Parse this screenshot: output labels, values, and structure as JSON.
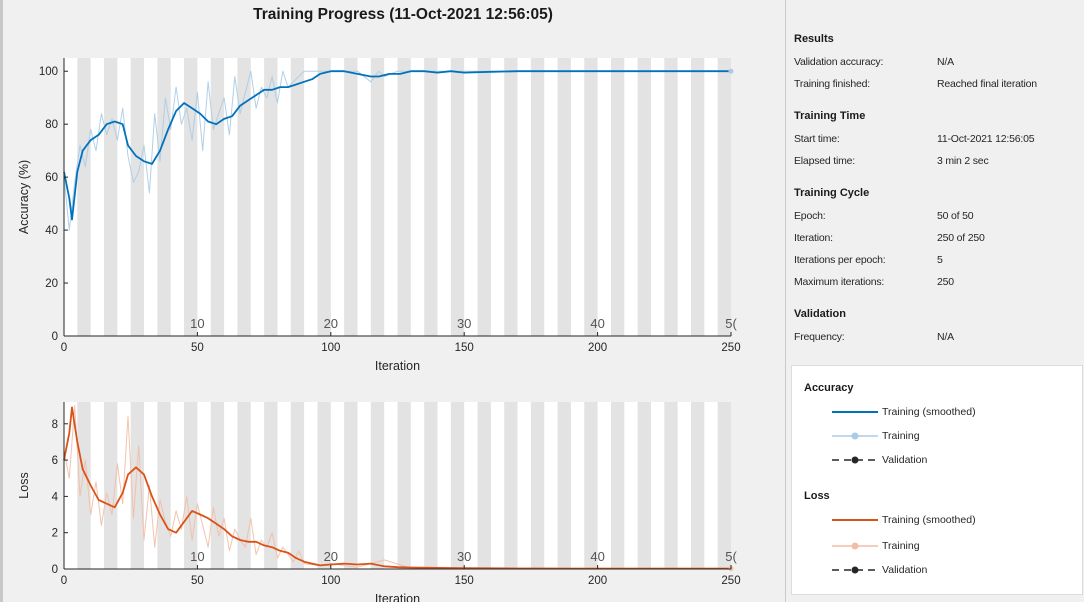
{
  "title": "Training Progress (11-Oct-2021 12:56:05)",
  "chart_data": [
    {
      "type": "line",
      "name": "accuracy-plot",
      "xlabel": "Iteration",
      "ylabel": "Accuracy (%)",
      "xlim": [
        0,
        250
      ],
      "ylim": [
        0,
        105
      ],
      "xticks": [
        0,
        50,
        100,
        150,
        200,
        250
      ],
      "yticks": [
        0,
        20,
        40,
        60,
        80,
        100
      ],
      "epoch_labels": [
        {
          "x": 50,
          "label": "10"
        },
        {
          "x": 100,
          "label": "20"
        },
        {
          "x": 150,
          "label": "30"
        },
        {
          "x": 200,
          "label": "40"
        },
        {
          "x": 250,
          "label": "5("
        }
      ],
      "epoch_bands": 50,
      "iterations_per_epoch": 5,
      "series": [
        {
          "name": "Training (smoothed)",
          "color": "#0072BD",
          "x": [
            0,
            2,
            3,
            5,
            7,
            10,
            13,
            16,
            19,
            22,
            24,
            27,
            30,
            33,
            36,
            39,
            42,
            45,
            48,
            51,
            54,
            57,
            60,
            63,
            66,
            69,
            72,
            75,
            78,
            81,
            84,
            87,
            90,
            93,
            96,
            100,
            105,
            110,
            115,
            118,
            122,
            126,
            130,
            135,
            140,
            145,
            150,
            160,
            170,
            180,
            190,
            200,
            210,
            220,
            230,
            240,
            250
          ],
          "y": [
            62,
            52,
            44,
            62,
            70,
            74,
            76,
            80,
            81,
            80,
            72,
            68,
            66,
            65,
            70,
            78,
            85,
            88,
            86,
            84,
            81,
            80,
            82,
            83,
            87,
            89,
            91,
            93,
            93,
            94,
            94,
            95,
            96,
            97,
            99,
            100,
            100,
            99,
            98,
            98,
            99,
            99,
            100,
            100,
            99.5,
            100,
            99.5,
            99.8,
            100,
            100,
            100,
            100,
            100,
            100,
            100,
            100,
            100
          ]
        },
        {
          "name": "Training",
          "color": "#A9CBE6",
          "x": [
            0,
            2,
            4,
            6,
            8,
            10,
            12,
            14,
            16,
            18,
            20,
            22,
            24,
            26,
            28,
            30,
            32,
            34,
            36,
            38,
            40,
            42,
            44,
            46,
            48,
            50,
            52,
            54,
            56,
            58,
            60,
            62,
            64,
            66,
            68,
            70,
            72,
            74,
            76,
            78,
            80,
            82,
            84,
            86,
            88,
            90,
            95,
            100,
            105,
            110,
            115,
            118,
            120,
            125,
            130,
            140,
            150,
            160,
            170,
            180,
            190,
            200,
            210,
            220,
            230,
            240,
            250
          ],
          "y": [
            60,
            40,
            58,
            72,
            64,
            78,
            70,
            84,
            76,
            82,
            74,
            86,
            68,
            58,
            62,
            72,
            54,
            84,
            66,
            90,
            78,
            94,
            80,
            86,
            74,
            92,
            70,
            96,
            78,
            84,
            90,
            76,
            98,
            84,
            92,
            100,
            86,
            94,
            90,
            98,
            88,
            100,
            94,
            96,
            98,
            100,
            100,
            100,
            100,
            100,
            96,
            100,
            98,
            100,
            100,
            100,
            100,
            100,
            100,
            100,
            100,
            100,
            100,
            100,
            100,
            100,
            100
          ]
        }
      ]
    },
    {
      "type": "line",
      "name": "loss-plot",
      "xlabel": "Iteration",
      "ylabel": "Loss",
      "xlim": [
        0,
        250
      ],
      "ylim": [
        0,
        9.2
      ],
      "xticks": [
        0,
        50,
        100,
        150,
        200,
        250
      ],
      "yticks": [
        0,
        2,
        4,
        6,
        8
      ],
      "epoch_labels": [
        {
          "x": 50,
          "label": "10"
        },
        {
          "x": 100,
          "label": "20"
        },
        {
          "x": 150,
          "label": "30"
        },
        {
          "x": 200,
          "label": "40"
        },
        {
          "x": 250,
          "label": "5("
        }
      ],
      "epoch_bands": 50,
      "series": [
        {
          "name": "Training (smoothed)",
          "color": "#D95319",
          "x": [
            0,
            2,
            3,
            5,
            7,
            10,
            13,
            16,
            19,
            22,
            24,
            27,
            30,
            33,
            36,
            39,
            42,
            45,
            48,
            51,
            54,
            57,
            60,
            63,
            66,
            69,
            72,
            75,
            78,
            81,
            84,
            87,
            90,
            93,
            96,
            100,
            105,
            110,
            115,
            120,
            125,
            130,
            140,
            150,
            160,
            170,
            180,
            190,
            200,
            210,
            220,
            230,
            240,
            250
          ],
          "y": [
            6,
            7.5,
            8.9,
            7,
            5.5,
            4.6,
            3.8,
            3.6,
            3.4,
            4.2,
            5.2,
            5.6,
            5.2,
            4.0,
            3.0,
            2.2,
            2.0,
            2.6,
            3.2,
            3.0,
            2.8,
            2.5,
            2.2,
            1.8,
            1.6,
            1.5,
            1.5,
            1.3,
            1.2,
            1.0,
            0.9,
            0.6,
            0.4,
            0.3,
            0.2,
            0.25,
            0.3,
            0.25,
            0.3,
            0.15,
            0.1,
            0.08,
            0.06,
            0.05,
            0.04,
            0.03,
            0.03,
            0.02,
            0.02,
            0.02,
            0.02,
            0.02,
            0.02,
            0.02
          ]
        },
        {
          "name": "Training",
          "color": "#F2BDA4",
          "x": [
            0,
            2,
            4,
            6,
            8,
            10,
            12,
            14,
            16,
            18,
            20,
            22,
            24,
            26,
            28,
            30,
            32,
            34,
            36,
            38,
            40,
            42,
            44,
            46,
            48,
            50,
            52,
            54,
            56,
            58,
            60,
            62,
            64,
            66,
            68,
            70,
            72,
            74,
            76,
            78,
            80,
            82,
            84,
            86,
            88,
            90,
            95,
            100,
            110,
            120,
            130,
            140,
            150,
            160,
            170,
            180,
            190,
            200,
            210,
            220,
            230,
            240,
            250
          ],
          "y": [
            6.5,
            5,
            9,
            4,
            6,
            3,
            4.8,
            2.4,
            4.2,
            3,
            5.8,
            3.6,
            8.4,
            2.8,
            6.8,
            1.6,
            4.6,
            1.2,
            3.8,
            2.6,
            1.8,
            3.2,
            2.2,
            4,
            1.6,
            3.6,
            2.4,
            1.2,
            3.4,
            1.8,
            2.8,
            1,
            2.2,
            1.6,
            1.2,
            2.8,
            0.8,
            1.6,
            1.2,
            2,
            0.6,
            1.2,
            0.8,
            0.4,
            1,
            0.3,
            0.2,
            0.3,
            0.1,
            0.5,
            0.05,
            0.05,
            0.05,
            0.05,
            0.05,
            0.05,
            0.05,
            0.05,
            0.05,
            0.05,
            0.05,
            0.05,
            0.05
          ]
        }
      ]
    }
  ],
  "info": {
    "results": {
      "title": "Results",
      "rows": [
        {
          "label": "Validation accuracy:",
          "value": "N/A"
        },
        {
          "label": "Training finished:",
          "value": "Reached final iteration"
        }
      ]
    },
    "training_time": {
      "title": "Training Time",
      "rows": [
        {
          "label": "Start time:",
          "value": "11-Oct-2021 12:56:05"
        },
        {
          "label": "Elapsed time:",
          "value": "3 min 2 sec"
        }
      ]
    },
    "training_cycle": {
      "title": "Training Cycle",
      "rows": [
        {
          "label": "Epoch:",
          "value": "50 of 50"
        },
        {
          "label": "Iteration:",
          "value": "250 of 250"
        },
        {
          "label": "Iterations per epoch:",
          "value": "5"
        },
        {
          "label": "Maximum iterations:",
          "value": "250"
        }
      ]
    },
    "validation": {
      "title": "Validation",
      "rows": [
        {
          "label": "Frequency:",
          "value": "N/A"
        }
      ]
    }
  },
  "legend": {
    "accuracy": {
      "title": "Accuracy",
      "smoothed": "Training (smoothed)",
      "training": "Training",
      "validation": "Validation"
    },
    "loss": {
      "title": "Loss",
      "smoothed": "Training (smoothed)",
      "training": "Training",
      "validation": "Validation"
    }
  },
  "colors": {
    "accuracy_smoothed": "#0072BD",
    "accuracy_raw": "#A9CBE6",
    "loss_smoothed": "#D95319",
    "loss_raw": "#F2BDA4",
    "validation": "#262626",
    "epoch_band": "#e3e3e3"
  }
}
